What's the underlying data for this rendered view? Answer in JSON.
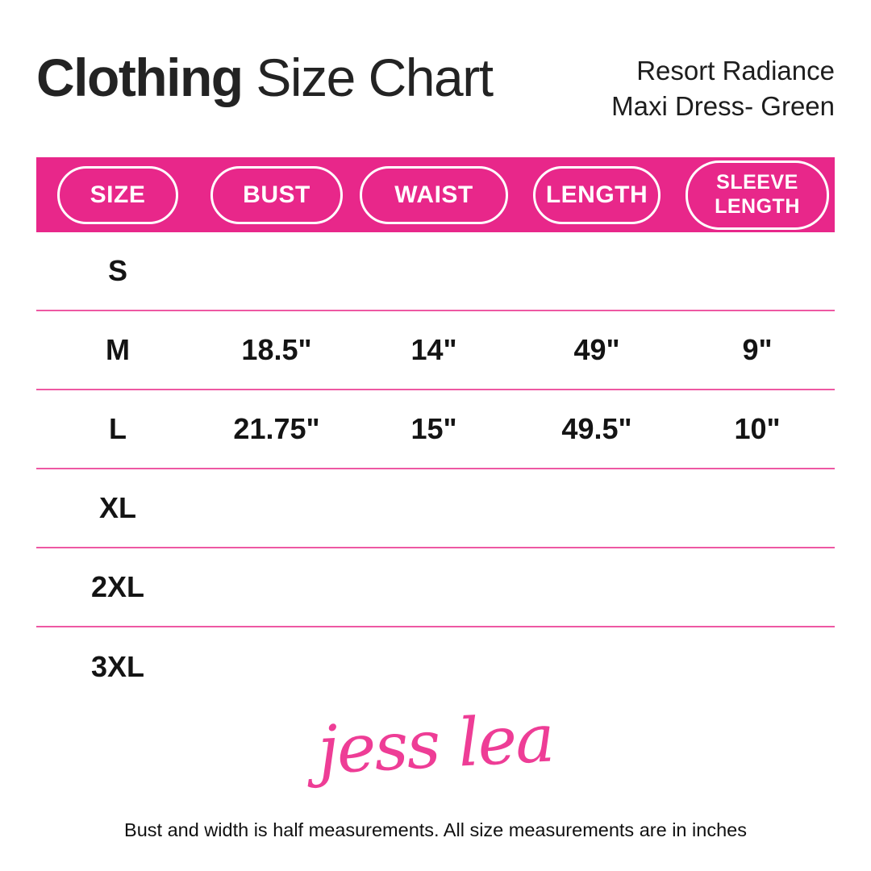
{
  "header": {
    "title_bold": "Clothing",
    "title_regular": " Size Chart",
    "subtitle_line1": "Resort Radiance",
    "subtitle_line2": "Maxi Dress- Green"
  },
  "table": {
    "columns": [
      "SIZE",
      "BUST",
      "WAIST",
      "LENGTH",
      "SLEEVE LENGTH"
    ],
    "rows": [
      {
        "size": "S",
        "bust": "",
        "waist": "",
        "length": "",
        "sleeve": ""
      },
      {
        "size": "M",
        "bust": "18.5\"",
        "waist": "14\"",
        "length": "49\"",
        "sleeve": "9\""
      },
      {
        "size": "L",
        "bust": "21.75\"",
        "waist": "15\"",
        "length": "49.5\"",
        "sleeve": "10\""
      },
      {
        "size": "XL",
        "bust": "",
        "waist": "",
        "length": "",
        "sleeve": ""
      },
      {
        "size": "2XL",
        "bust": "",
        "waist": "",
        "length": "",
        "sleeve": ""
      },
      {
        "size": "3XL",
        "bust": "",
        "waist": "",
        "length": "",
        "sleeve": ""
      }
    ]
  },
  "footer": {
    "logo_text": "jess lea",
    "note": "Bust and width is half measurements. All size measurements are in inches"
  },
  "colors": {
    "band_pink": "#e8278a",
    "divider_pink": "#ee58a3",
    "logo_pink": "#ee3d96",
    "title_ink": "#232323"
  }
}
